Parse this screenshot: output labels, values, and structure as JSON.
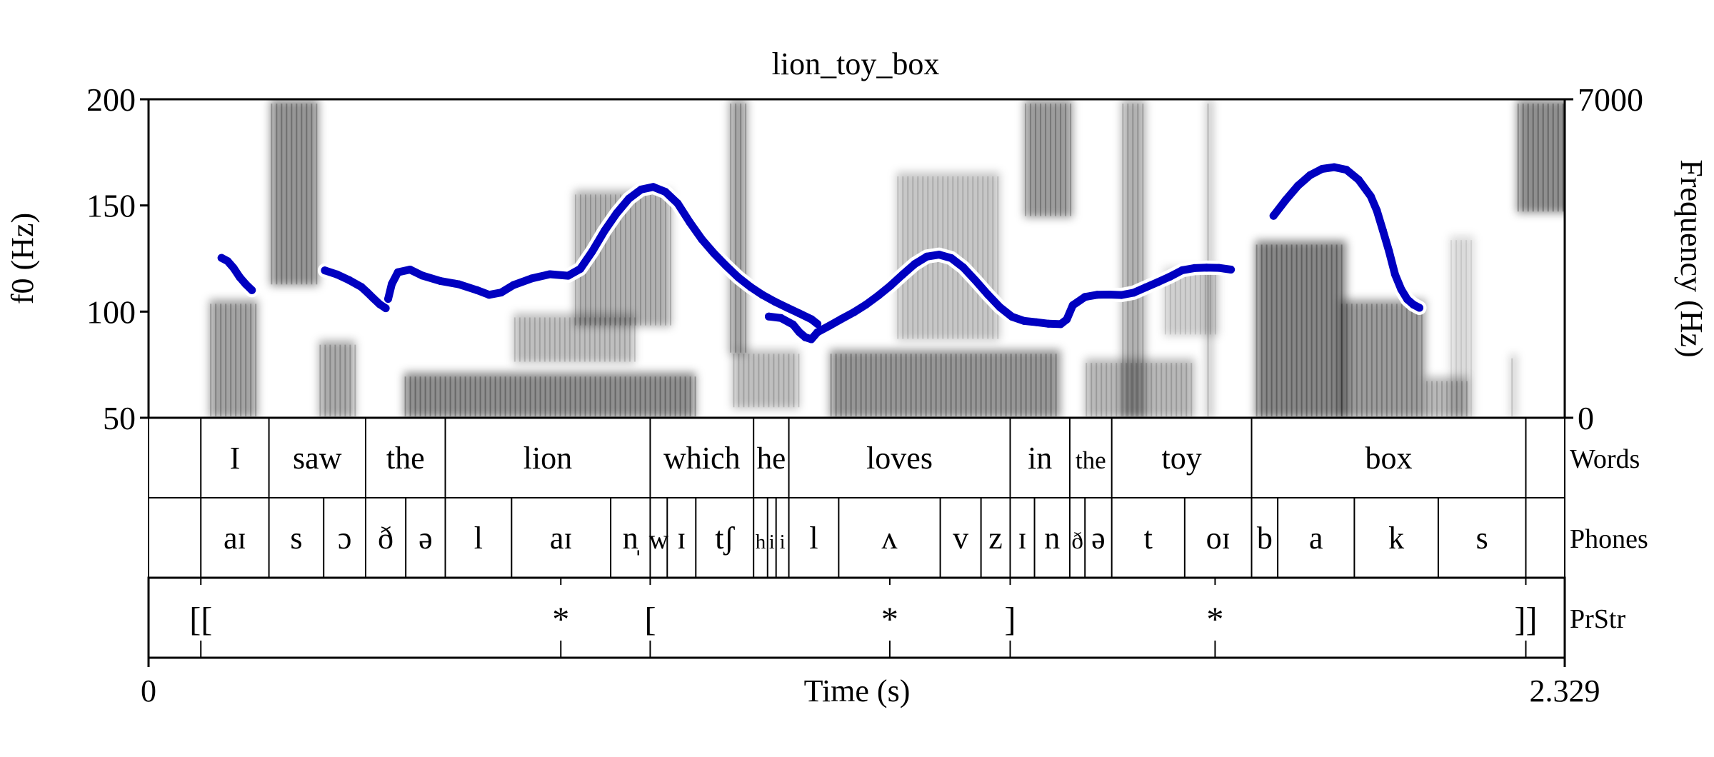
{
  "chart_data": {
    "type": "line",
    "title": "lion_toy_box",
    "xlabel": "Time (s)",
    "ylabel": "f0 (Hz)",
    "y2label": "Frequency (Hz)",
    "xlim": [
      0,
      2.329
    ],
    "ylim": [
      50,
      200
    ],
    "y2lim": [
      0,
      7000
    ],
    "x_ticks": [
      "0",
      "2.329"
    ],
    "y_ticks": [
      {
        "value": 50,
        "label": "50"
      },
      {
        "value": 100,
        "label": "100"
      },
      {
        "value": 150,
        "label": "150"
      },
      {
        "value": 200,
        "label": "200"
      }
    ],
    "y2_ticks": [
      {
        "value": 0,
        "label": "0"
      },
      {
        "value": 7000,
        "label": "7000"
      }
    ],
    "colors": {
      "f0": "#0000c0",
      "halo": "#ffffff",
      "spectrogram": "#000000"
    },
    "f0_series": [
      [
        [
          0.12,
          125.3
        ],
        [
          0.13,
          123.8
        ],
        [
          0.14,
          120.5
        ],
        [
          0.15,
          116.2
        ],
        [
          0.16,
          112.9
        ],
        [
          0.17,
          110.1
        ]
      ],
      [
        [
          0.29,
          119.4
        ],
        [
          0.31,
          117.5
        ],
        [
          0.33,
          114.8
        ],
        [
          0.35,
          111.6
        ],
        [
          0.36,
          109.0
        ],
        [
          0.37,
          106.2
        ],
        [
          0.38,
          103.5
        ],
        [
          0.39,
          101.6
        ]
      ],
      [
        [
          0.394,
          106.0
        ],
        [
          0.4,
          113.0
        ],
        [
          0.41,
          118.5
        ],
        [
          0.43,
          119.8
        ],
        [
          0.45,
          117.0
        ],
        [
          0.48,
          114.4
        ],
        [
          0.51,
          112.9
        ],
        [
          0.54,
          110.1
        ],
        [
          0.56,
          107.9
        ],
        [
          0.58,
          109.0
        ],
        [
          0.6,
          112.5
        ],
        [
          0.63,
          115.6
        ],
        [
          0.66,
          117.6
        ],
        [
          0.69,
          116.9
        ],
        [
          0.71,
          120.1
        ],
        [
          0.73,
          128.5
        ],
        [
          0.75,
          138.1
        ],
        [
          0.77,
          146.4
        ],
        [
          0.79,
          153.2
        ],
        [
          0.81,
          157.5
        ],
        [
          0.83,
          158.7
        ],
        [
          0.85,
          156.4
        ],
        [
          0.87,
          151.0
        ],
        [
          0.89,
          142.1
        ],
        [
          0.91,
          134.0
        ],
        [
          0.93,
          127.4
        ],
        [
          0.95,
          121.5
        ],
        [
          0.97,
          116.1
        ],
        [
          0.99,
          111.6
        ],
        [
          1.01,
          107.8
        ],
        [
          1.03,
          104.7
        ],
        [
          1.05,
          101.9
        ],
        [
          1.07,
          99.2
        ],
        [
          1.09,
          96.4
        ],
        [
          1.1,
          94.2
        ]
      ],
      [
        [
          1.02,
          97.7
        ],
        [
          1.04,
          97.0
        ],
        [
          1.06,
          93.9
        ],
        [
          1.07,
          90.4
        ],
        [
          1.08,
          87.9
        ],
        [
          1.09,
          87.0
        ],
        [
          1.1,
          90.3
        ],
        [
          1.12,
          93.4
        ],
        [
          1.14,
          96.6
        ],
        [
          1.16,
          99.7
        ],
        [
          1.18,
          103.3
        ],
        [
          1.2,
          107.5
        ],
        [
          1.22,
          112.2
        ],
        [
          1.24,
          117.4
        ],
        [
          1.26,
          122.4
        ],
        [
          1.28,
          125.9
        ],
        [
          1.3,
          126.8
        ],
        [
          1.32,
          125.2
        ],
        [
          1.34,
          120.8
        ],
        [
          1.36,
          114.6
        ],
        [
          1.38,
          108.1
        ],
        [
          1.4,
          102.1
        ],
        [
          1.42,
          97.6
        ],
        [
          1.44,
          95.6
        ],
        [
          1.46,
          95.0
        ],
        [
          1.48,
          94.3
        ],
        [
          1.5,
          94.1
        ],
        [
          1.51,
          96.3
        ],
        [
          1.52,
          103.0
        ],
        [
          1.54,
          106.9
        ],
        [
          1.56,
          107.9
        ],
        [
          1.58,
          108.0
        ],
        [
          1.6,
          107.8
        ],
        [
          1.62,
          108.9
        ],
        [
          1.64,
          111.4
        ],
        [
          1.66,
          113.9
        ],
        [
          1.68,
          116.5
        ],
        [
          1.7,
          119.5
        ],
        [
          1.72,
          120.5
        ],
        [
          1.74,
          120.7
        ],
        [
          1.76,
          120.6
        ],
        [
          1.78,
          119.8
        ]
      ],
      [
        [
          1.85,
          145.1
        ],
        [
          1.87,
          152.5
        ],
        [
          1.89,
          159.2
        ],
        [
          1.91,
          164.2
        ],
        [
          1.93,
          167.2
        ],
        [
          1.95,
          168.0
        ],
        [
          1.97,
          166.8
        ],
        [
          1.99,
          162.1
        ],
        [
          2.01,
          154.3
        ],
        [
          2.02,
          147.6
        ],
        [
          2.03,
          138.2
        ],
        [
          2.04,
          128.5
        ],
        [
          2.05,
          117.5
        ],
        [
          2.06,
          110.5
        ],
        [
          2.07,
          105.8
        ],
        [
          2.08,
          103.3
        ],
        [
          2.09,
          101.8
        ]
      ]
    ],
    "spectrogram_blobs": [
      {
        "t0": 0.1,
        "t1": 0.18,
        "f0": 0,
        "f1": 2600,
        "dark": 0.65
      },
      {
        "t0": 0.2,
        "t1": 0.28,
        "f0": 2900,
        "f1": 7000,
        "dark": 0.75
      },
      {
        "t0": 0.28,
        "t1": 0.34,
        "f0": 0,
        "f1": 1700,
        "dark": 0.6
      },
      {
        "t0": 0.42,
        "t1": 0.9,
        "f0": 0,
        "f1": 1000,
        "dark": 0.8
      },
      {
        "t0": 0.6,
        "t1": 0.8,
        "f0": 1200,
        "f1": 2300,
        "dark": 0.45
      },
      {
        "t0": 0.7,
        "t1": 0.86,
        "f0": 2000,
        "f1": 5000,
        "dark": 0.55
      },
      {
        "t0": 0.96,
        "t1": 1.07,
        "f0": 200,
        "f1": 1500,
        "dark": 0.45
      },
      {
        "t0": 0.955,
        "t1": 0.985,
        "f0": 1400,
        "f1": 7000,
        "dark": 0.65
      },
      {
        "t0": 1.12,
        "t1": 1.5,
        "f0": 0,
        "f1": 1500,
        "dark": 0.75
      },
      {
        "t0": 1.23,
        "t1": 1.4,
        "f0": 1700,
        "f1": 5400,
        "dark": 0.4
      },
      {
        "t0": 1.44,
        "t1": 1.52,
        "f0": 4400,
        "f1": 7000,
        "dark": 0.7
      },
      {
        "t0": 1.54,
        "t1": 1.72,
        "f0": 0,
        "f1": 1300,
        "dark": 0.5
      },
      {
        "t0": 1.67,
        "t1": 1.76,
        "f0": 1800,
        "f1": 3300,
        "dark": 0.35
      },
      {
        "t0": 1.6,
        "t1": 1.64,
        "f0": 0,
        "f1": 7000,
        "dark": 0.55
      },
      {
        "t0": 1.74,
        "t1": 1.75,
        "f0": 0,
        "f1": 7000,
        "dark": 0.5
      },
      {
        "t0": 1.82,
        "t1": 1.97,
        "f0": 0,
        "f1": 3900,
        "dark": 0.85
      },
      {
        "t0": 1.96,
        "t1": 2.1,
        "f0": 0,
        "f1": 2600,
        "dark": 0.7
      },
      {
        "t0": 2.1,
        "t1": 2.17,
        "f0": 0,
        "f1": 900,
        "dark": 0.5
      },
      {
        "t0": 2.14,
        "t1": 2.18,
        "f0": 0,
        "f1": 4000,
        "dark": 0.25
      },
      {
        "t0": 2.24,
        "t1": 2.25,
        "f0": 0,
        "f1": 1400,
        "dark": 0.4
      },
      {
        "t0": 2.25,
        "t1": 2.41,
        "f0": 4500,
        "f1": 7000,
        "dark": 0.8
      }
    ],
    "tiers": [
      {
        "name": "Words",
        "type": "interval",
        "intervals": [
          {
            "start": 0.086,
            "end": 0.198,
            "label": "I"
          },
          {
            "start": 0.198,
            "end": 0.357,
            "label": "saw"
          },
          {
            "start": 0.357,
            "end": 0.488,
            "label": "the"
          },
          {
            "start": 0.488,
            "end": 0.825,
            "label": "lion"
          },
          {
            "start": 0.825,
            "end": 0.995,
            "label": "which"
          },
          {
            "start": 0.995,
            "end": 1.053,
            "label": "he"
          },
          {
            "start": 1.053,
            "end": 1.417,
            "label": "loves"
          },
          {
            "start": 1.417,
            "end": 1.515,
            "label": "in"
          },
          {
            "start": 1.515,
            "end": 1.584,
            "label": "the"
          },
          {
            "start": 1.584,
            "end": 1.814,
            "label": "toy"
          },
          {
            "start": 1.814,
            "end": 2.265,
            "label": "box"
          }
        ]
      },
      {
        "name": "Phones",
        "type": "interval",
        "intervals": [
          {
            "start": 0.086,
            "end": 0.198,
            "label": "aɪ"
          },
          {
            "start": 0.198,
            "end": 0.288,
            "label": "s"
          },
          {
            "start": 0.288,
            "end": 0.357,
            "label": "ɔ"
          },
          {
            "start": 0.357,
            "end": 0.423,
            "label": "ð"
          },
          {
            "start": 0.423,
            "end": 0.488,
            "label": "ə"
          },
          {
            "start": 0.488,
            "end": 0.597,
            "label": "l"
          },
          {
            "start": 0.597,
            "end": 0.76,
            "label": "aɪ"
          },
          {
            "start": 0.76,
            "end": 0.825,
            "label": "n̩"
          },
          {
            "start": 0.825,
            "end": 0.853,
            "label": "w"
          },
          {
            "start": 0.853,
            "end": 0.9,
            "label": "ɪ"
          },
          {
            "start": 0.9,
            "end": 0.995,
            "label": "tʃ"
          },
          {
            "start": 0.995,
            "end": 1.018,
            "label": "h"
          },
          {
            "start": 1.018,
            "end": 1.032,
            "label": "i"
          },
          {
            "start": 1.032,
            "end": 1.053,
            "label": "i"
          },
          {
            "start": 1.053,
            "end": 1.135,
            "label": "l"
          },
          {
            "start": 1.135,
            "end": 1.302,
            "label": "ʌ"
          },
          {
            "start": 1.302,
            "end": 1.369,
            "label": "v"
          },
          {
            "start": 1.369,
            "end": 1.417,
            "label": "z"
          },
          {
            "start": 1.417,
            "end": 1.457,
            "label": "ɪ"
          },
          {
            "start": 1.457,
            "end": 1.515,
            "label": "n"
          },
          {
            "start": 1.515,
            "end": 1.54,
            "label": "ð"
          },
          {
            "start": 1.54,
            "end": 1.584,
            "label": "ə"
          },
          {
            "start": 1.584,
            "end": 1.704,
            "label": "t"
          },
          {
            "start": 1.704,
            "end": 1.814,
            "label": "oɪ"
          },
          {
            "start": 1.814,
            "end": 1.857,
            "label": "b"
          },
          {
            "start": 1.857,
            "end": 1.983,
            "label": "a"
          },
          {
            "start": 1.983,
            "end": 2.121,
            "label": "k"
          },
          {
            "start": 2.121,
            "end": 2.265,
            "label": "s"
          }
        ]
      },
      {
        "name": "PrStr",
        "type": "point",
        "points": [
          {
            "time": 0.086,
            "label": "[["
          },
          {
            "time": 0.678,
            "label": "*"
          },
          {
            "time": 0.825,
            "label": "["
          },
          {
            "time": 1.219,
            "label": "*"
          },
          {
            "time": 1.417,
            "label": "]"
          },
          {
            "time": 1.754,
            "label": "*"
          },
          {
            "time": 2.265,
            "label": "]]"
          }
        ]
      }
    ]
  }
}
